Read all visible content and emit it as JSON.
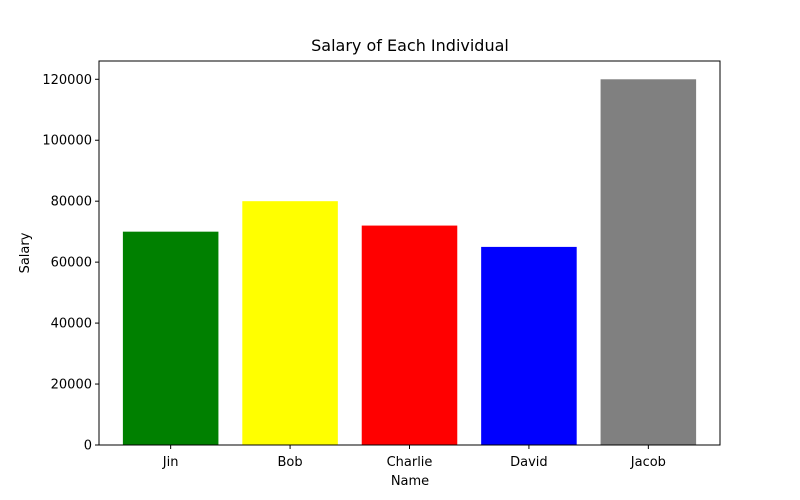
{
  "chart_data": {
    "type": "bar",
    "title": "Salary of Each Individual",
    "xlabel": "Name",
    "ylabel": "Salary",
    "categories": [
      "Jin",
      "Bob",
      "Charlie",
      "David",
      "Jacob"
    ],
    "values": [
      70000,
      80000,
      72000,
      65000,
      120000
    ],
    "colors": [
      "#008000",
      "#ffff00",
      "#ff0000",
      "#0000ff",
      "#808080"
    ],
    "ylim": [
      0,
      126000
    ],
    "yticks": [
      "0",
      "20000",
      "40000",
      "60000",
      "80000",
      "100000",
      "120000"
    ],
    "grid": false,
    "legend": "none"
  }
}
